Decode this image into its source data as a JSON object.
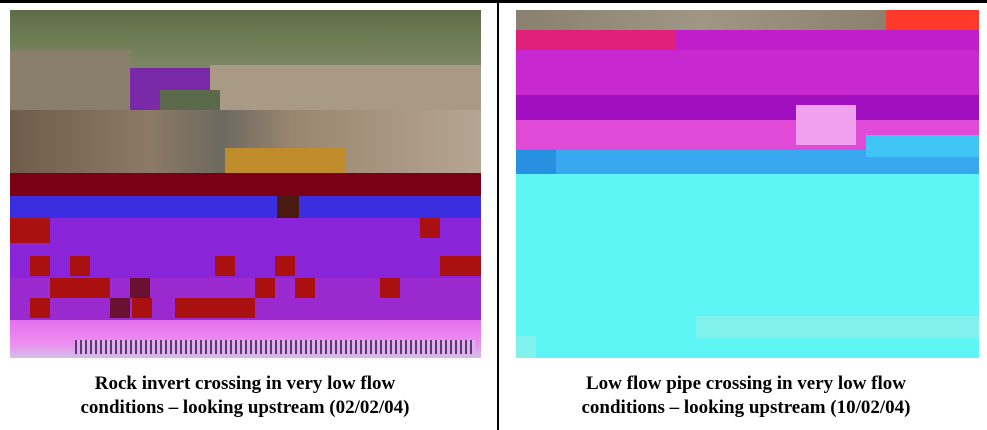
{
  "figures": [
    {
      "caption_line1": "Rock invert crossing in very low flow",
      "caption_line2": "conditions – looking upstream (02/02/04)"
    },
    {
      "caption_line1": "Low flow pipe crossing in very low flow",
      "caption_line2": "conditions – looking upstream (10/02/04)"
    }
  ]
}
